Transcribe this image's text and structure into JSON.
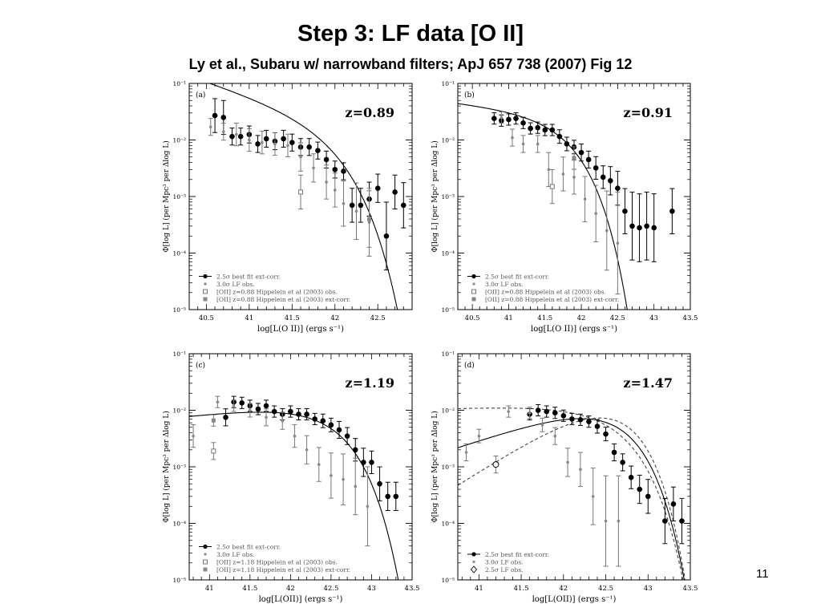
{
  "slide": {
    "title": "Step 3: LF data [O II]",
    "subtitle": "Ly et al., Subaru  w/ narrowband filters; ApJ 657 738 (2007)  Fig 12",
    "page_number": "11"
  },
  "chart_data": [
    {
      "type": "scatter",
      "panel_label": "(a)",
      "redshift_label": "z=0.89",
      "xlabel": "log[L(O II)] (ergs s⁻¹)",
      "ylabel": "Φ[log L] (per Mpc³ per Δlog L)",
      "y_scale": "log",
      "xlim": [
        40.3,
        42.9
      ],
      "ylim": [
        1e-05,
        0.1
      ],
      "x_ticks": [
        40.5,
        41,
        41.5,
        42,
        42.5
      ],
      "y_ticks": [
        1e-05,
        0.0001,
        0.001,
        0.01,
        0.1
      ],
      "y_tick_labels": [
        "10⁻⁵",
        "10⁻⁴",
        "10⁻³",
        "10⁻²",
        "10⁻¹"
      ],
      "legend": [
        {
          "symbol": "filled-circle-line",
          "label": "2.5σ best fit ext-corr."
        },
        {
          "symbol": "small-dot",
          "label": "3.0σ LF obs."
        },
        {
          "symbol": "open-square",
          "label": "[OII] z=0.88 Hippelein et al (2003) obs."
        },
        {
          "symbol": "filled-square",
          "label": "[OII] z=0.88 Hippelein et al (2003) ext-corr."
        }
      ],
      "curves": [
        {
          "name": "2.5σ best fit ext-corr.",
          "style": "solid",
          "phi_star": 0.0095,
          "log_L_star": 41.9,
          "alpha": -1.5
        }
      ],
      "series": [
        {
          "name": "2.5σ best fit ext-corr.",
          "marker": "filled-circle",
          "x": [
            40.6,
            40.7,
            40.8,
            40.9,
            41.0,
            41.1,
            41.2,
            41.3,
            41.4,
            41.5,
            41.6,
            41.7,
            41.8,
            41.9,
            42.0,
            42.1,
            42.2,
            42.3,
            42.4,
            42.5,
            42.6,
            42.7,
            42.8
          ],
          "y": [
            0.027,
            0.025,
            0.0115,
            0.0115,
            0.0125,
            0.0085,
            0.0105,
            0.0095,
            0.0105,
            0.009,
            0.0075,
            0.0075,
            0.0065,
            0.0045,
            0.003,
            0.0028,
            0.0007,
            0.0007,
            0.0009,
            0.0014,
            0.0002,
            0.0012,
            0.0007
          ],
          "yerr": [
            0.3,
            0.3,
            0.15,
            0.15,
            0.15,
            0.15,
            0.15,
            0.15,
            0.15,
            0.15,
            0.15,
            0.15,
            0.15,
            0.15,
            0.15,
            0.15,
            0.3,
            0.3,
            0.3,
            0.25,
            0.6,
            0.3,
            0.4
          ]
        },
        {
          "name": "3.0σ LF obs.",
          "marker": "small-dot",
          "x": [
            40.55,
            40.7,
            40.85,
            41.0,
            41.15,
            41.3,
            41.45,
            41.6,
            41.75,
            41.9,
            42.0,
            42.1,
            42.25,
            42.4
          ],
          "y": [
            0.017,
            0.014,
            0.0125,
            0.01,
            0.009,
            0.0085,
            0.008,
            0.005,
            0.0032,
            0.0018,
            0.0013,
            0.00075,
            0.00055,
            0.00035
          ],
          "yerr": [
            0.15,
            0.15,
            0.2,
            0.2,
            0.2,
            0.2,
            0.2,
            0.25,
            0.25,
            0.3,
            0.3,
            0.4,
            0.5,
            0.6
          ]
        },
        {
          "name": "[OII] z=0.88 Hippelein et al (2003) obs.",
          "marker": "open-square",
          "x": [
            41.6
          ],
          "y": [
            0.0012
          ],
          "yerr": [
            0.3
          ]
        },
        {
          "name": "[OII] z=0.88 Hippelein et al (2003) ext-corr.",
          "marker": "filled-square",
          "x": [
            42.4
          ],
          "y": [
            0.0004
          ],
          "yerr": [
            0.5
          ]
        }
      ]
    },
    {
      "type": "scatter",
      "panel_label": "(b)",
      "redshift_label": "z=0.91",
      "xlabel": "log[L(O II)] (ergs s⁻¹)",
      "ylabel": "Φ[log L] (per Mpc³ per Δlog L)",
      "y_scale": "log",
      "xlim": [
        40.3,
        43.5
      ],
      "ylim": [
        1e-05,
        0.1
      ],
      "x_ticks": [
        40.5,
        41,
        41.5,
        42,
        42.5,
        43,
        43.5
      ],
      "y_ticks": [
        1e-05,
        0.0001,
        0.001,
        0.01,
        0.1
      ],
      "y_tick_labels": [
        "10⁻⁵",
        "10⁻⁴",
        "10⁻³",
        "10⁻²",
        "10⁻¹"
      ],
      "legend": [
        {
          "symbol": "filled-circle-line",
          "label": "2.5σ best fit ext-corr."
        },
        {
          "symbol": "small-dot",
          "label": "3.0σ LF obs."
        },
        {
          "symbol": "open-square",
          "label": "[OII] z=0.88 Hippelein et al (2003) obs."
        },
        {
          "symbol": "filled-square",
          "label": "[OII] z=0.88 Hippelein et al (2003) ext-corr."
        }
      ],
      "curves": [
        {
          "name": "2.5σ best fit ext-corr.",
          "style": "solid",
          "phi_star": 0.012,
          "log_L_star": 41.75,
          "alpha": -1.15
        }
      ],
      "series": [
        {
          "name": "2.5σ best fit ext-corr.",
          "marker": "filled-circle",
          "x": [
            40.8,
            40.9,
            41.0,
            41.1,
            41.2,
            41.3,
            41.4,
            41.5,
            41.6,
            41.7,
            41.8,
            41.9,
            42.0,
            42.1,
            42.2,
            42.3,
            42.4,
            42.5,
            42.6,
            42.7,
            42.8,
            42.9,
            43.0,
            43.25
          ],
          "y": [
            0.024,
            0.022,
            0.023,
            0.024,
            0.02,
            0.016,
            0.0165,
            0.015,
            0.015,
            0.0115,
            0.0085,
            0.0075,
            0.006,
            0.0045,
            0.0032,
            0.0022,
            0.0019,
            0.0014,
            0.00055,
            0.0003,
            0.00028,
            0.0003,
            0.00028,
            0.00055
          ],
          "yerr": [
            0.1,
            0.1,
            0.1,
            0.1,
            0.1,
            0.1,
            0.1,
            0.1,
            0.1,
            0.12,
            0.12,
            0.12,
            0.15,
            0.15,
            0.2,
            0.2,
            0.25,
            0.3,
            0.4,
            0.6,
            0.6,
            0.6,
            0.6,
            0.4
          ]
        },
        {
          "name": "3.0σ LF obs.",
          "marker": "small-dot",
          "x": [
            40.9,
            41.05,
            41.2,
            41.4,
            41.55,
            41.75,
            41.9,
            42.05,
            42.2,
            42.35,
            42.5
          ],
          "y": [
            0.025,
            0.011,
            0.0085,
            0.0085,
            0.003,
            0.0025,
            0.0022,
            0.0009,
            0.0005,
            0.00025,
            0.00015
          ],
          "yerr": [
            0.1,
            0.15,
            0.15,
            0.15,
            0.3,
            0.3,
            0.3,
            0.4,
            0.5,
            0.7,
            0.9
          ]
        },
        {
          "name": "[OII] z=0.88 Hippelein et al (2003) obs.",
          "marker": "open-square",
          "x": [
            41.6
          ],
          "y": [
            0.0015
          ],
          "yerr": [
            0.3
          ]
        },
        {
          "name": "[OII] z=0.88 Hippelein et al (2003) ext-corr.",
          "marker": "filled-square",
          "x": [
            41.9
          ],
          "y": [
            0.0048
          ],
          "yerr": [
            0.2
          ]
        }
      ]
    },
    {
      "type": "scatter",
      "panel_label": "(c)",
      "redshift_label": "z=1.19",
      "xlabel": "log[L(OII)] (ergs s⁻¹)",
      "ylabel": "Φ[log L] (per Mpc³ per Δlog L)",
      "y_scale": "log",
      "xlim": [
        40.75,
        43.5
      ],
      "ylim": [
        1e-05,
        0.1
      ],
      "x_ticks": [
        41,
        41.5,
        42,
        42.5,
        43,
        43.5
      ],
      "y_ticks": [
        1e-05,
        0.0001,
        0.001,
        0.01,
        0.1
      ],
      "y_tick_labels": [
        "10⁻⁵",
        "10⁻⁴",
        "10⁻³",
        "10⁻²",
        "10⁻¹"
      ],
      "legend": [
        {
          "symbol": "filled-circle-line",
          "label": "2.5σ best fit ext-corr."
        },
        {
          "symbol": "small-dot",
          "label": "3.0σ LF obs."
        },
        {
          "symbol": "open-square",
          "label": "[OII] z=1.18  Hippelein et al (2003) obs."
        },
        {
          "symbol": "filled-square",
          "label": "[OII] z=1.18  Hippelein et al (2003) ext-corr."
        }
      ],
      "curves": [
        {
          "name": "2.5σ best fit ext-corr.",
          "style": "solid",
          "phi_star": 0.0062,
          "log_L_star": 42.45,
          "alpha": -0.85
        }
      ],
      "series": [
        {
          "name": "2.5σ best fit ext-corr.",
          "marker": "filled-circle",
          "x": [
            41.2,
            41.3,
            41.4,
            41.5,
            41.6,
            41.7,
            41.8,
            41.9,
            42.0,
            42.1,
            42.2,
            42.3,
            42.4,
            42.5,
            42.6,
            42.7,
            42.8,
            42.9,
            43.0,
            43.1,
            43.2,
            43.3
          ],
          "y": [
            0.0075,
            0.014,
            0.0135,
            0.012,
            0.0105,
            0.012,
            0.0095,
            0.0085,
            0.0095,
            0.0085,
            0.0085,
            0.007,
            0.0065,
            0.0055,
            0.0045,
            0.0035,
            0.002,
            0.0012,
            0.0012,
            0.0005,
            0.0003,
            0.0003
          ],
          "yerr": [
            0.15,
            0.1,
            0.1,
            0.1,
            0.1,
            0.1,
            0.1,
            0.1,
            0.1,
            0.1,
            0.1,
            0.1,
            0.12,
            0.12,
            0.15,
            0.15,
            0.2,
            0.25,
            0.2,
            0.3,
            0.25,
            0.25
          ]
        },
        {
          "name": "3.0σ LF obs.",
          "marker": "small-dot",
          "x": [
            40.8,
            41.1,
            41.3,
            41.5,
            41.7,
            41.9,
            42.05,
            42.2,
            42.35,
            42.5,
            42.65,
            42.8,
            42.95
          ],
          "y": [
            0.0035,
            0.014,
            0.012,
            0.01,
            0.0075,
            0.0065,
            0.0035,
            0.002,
            0.0011,
            0.0007,
            0.0006,
            0.00045,
            0.0002
          ],
          "yerr": [
            0.2,
            0.1,
            0.1,
            0.12,
            0.15,
            0.15,
            0.2,
            0.25,
            0.3,
            0.4,
            0.45,
            0.5,
            0.7
          ]
        },
        {
          "name": "[OII] z=1.18  Hippelein et al (2003) obs.",
          "marker": "open-square",
          "x": [
            41.05
          ],
          "y": [
            0.0019
          ],
          "yerr": [
            0.15
          ]
        },
        {
          "name": "[OII] z=1.18  Hippelein et al (2003) ext-corr.",
          "marker": "filled-square",
          "x": [
            41.05
          ],
          "y": [
            0.0066
          ],
          "yerr": [
            0.1
          ]
        }
      ]
    },
    {
      "type": "scatter",
      "panel_label": "(d)",
      "redshift_label": "z=1.47",
      "xlabel": "log[L(OII)] (ergs s⁻¹)",
      "ylabel": "Φ[log L] (per Mpc³ per Δlog L)",
      "y_scale": "log",
      "xlim": [
        40.75,
        43.5
      ],
      "ylim": [
        1e-05,
        0.1
      ],
      "x_ticks": [
        41,
        41.5,
        42,
        42.5,
        43,
        43.5
      ],
      "y_ticks": [
        1e-05,
        0.0001,
        0.001,
        0.01,
        0.1
      ],
      "y_tick_labels": [
        "10⁻⁵",
        "10⁻⁴",
        "10⁻³",
        "10⁻²",
        "10⁻¹"
      ],
      "legend": [
        {
          "symbol": "filled-circle-line",
          "label": "2.5σ best fit ext-corr."
        },
        {
          "symbol": "small-dot",
          "label": "3.0σ LF obs."
        },
        {
          "symbol": "open-diamond",
          "label": "2.5σ LF obs."
        }
      ],
      "curves": [
        {
          "name": "2.5σ best fit ext-corr.",
          "style": "solid",
          "phi_star": 0.0072,
          "log_L_star": 42.5,
          "alpha": -0.5
        },
        {
          "name": "",
          "style": "dashed",
          "phi_star": 0.0058,
          "log_L_star": 42.55,
          "alpha": -0.95
        },
        {
          "name": "",
          "style": "dashed",
          "phi_star": 0.0086,
          "log_L_star": 42.45,
          "alpha": -0.05
        }
      ],
      "series": [
        {
          "name": "2.5σ best fit ext-corr.",
          "marker": "filled-circle",
          "x": [
            41.6,
            41.7,
            41.8,
            41.9,
            42.0,
            42.1,
            42.2,
            42.3,
            42.4,
            42.5,
            42.6,
            42.7,
            42.8,
            42.9,
            43.0,
            43.2,
            43.3,
            43.4
          ],
          "y": [
            0.0085,
            0.01,
            0.0095,
            0.009,
            0.008,
            0.007,
            0.0068,
            0.0063,
            0.0052,
            0.0038,
            0.0018,
            0.0012,
            0.00065,
            0.0004,
            0.0003,
            0.00011,
            0.00022,
            0.00011
          ],
          "yerr": [
            0.1,
            0.1,
            0.1,
            0.1,
            0.1,
            0.1,
            0.1,
            0.1,
            0.12,
            0.12,
            0.15,
            0.15,
            0.2,
            0.25,
            0.3,
            0.4,
            0.3,
            0.4
          ]
        },
        {
          "name": "3.0σ LF obs.",
          "marker": "small-dot",
          "x": [
            40.85,
            41.0,
            41.35,
            41.6,
            41.75,
            41.9,
            42.05,
            42.2,
            42.35,
            42.5,
            42.65
          ],
          "y": [
            0.0018,
            0.0035,
            0.0095,
            0.009,
            0.0055,
            0.0035,
            0.0012,
            0.0009,
            0.0003,
            0.00011,
            0.00011
          ],
          "yerr": [
            0.15,
            0.12,
            0.1,
            0.1,
            0.12,
            0.15,
            0.25,
            0.3,
            0.5,
            0.8,
            0.8
          ]
        },
        {
          "name": "2.5σ LF obs.",
          "marker": "open-diamond",
          "x": [
            41.2
          ],
          "y": [
            0.0011
          ],
          "yerr": [
            0.15
          ]
        }
      ]
    }
  ]
}
